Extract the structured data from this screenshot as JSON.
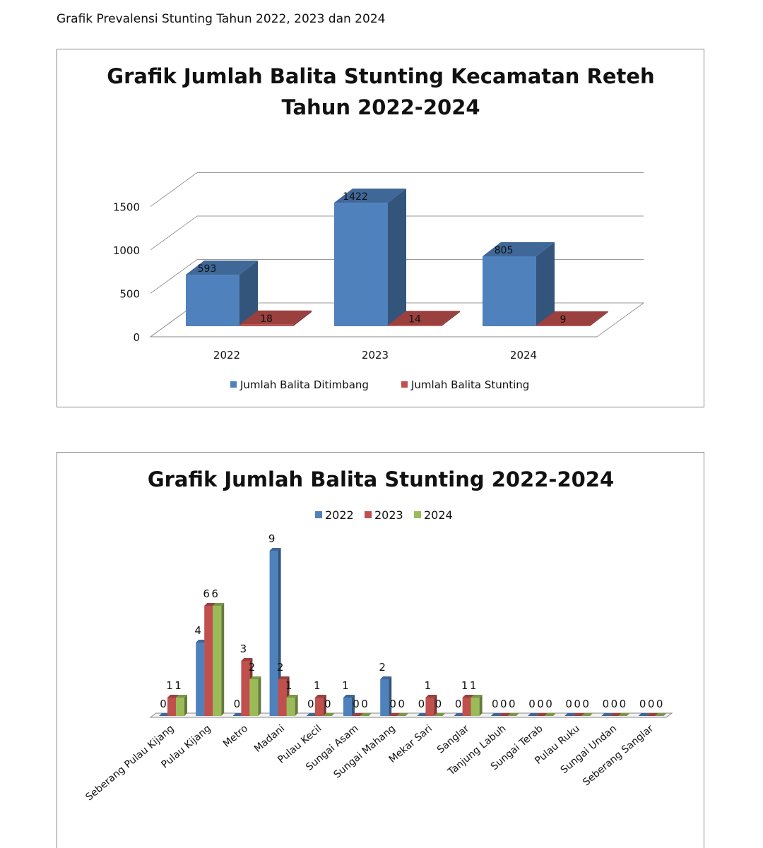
{
  "page_title": "Grafik Prevalensi Stunting Tahun 2022, 2023 dan 2024",
  "chart_data": [
    {
      "type": "bar",
      "title": "Grafik Jumlah Balita Stunting Kecamatan Reteh Tahun 2022-2024",
      "title_lines": [
        "Grafik Jumlah Balita Stunting Kecamatan Reteh",
        "Tahun 2022-2024"
      ],
      "categories": [
        "2022",
        "2023",
        "2024"
      ],
      "series": [
        {
          "name": "Jumlah Balita Ditimbang",
          "values": [
            593,
            1422,
            805
          ],
          "color": "#4f81bd"
        },
        {
          "name": "Jumlah Balita Stunting",
          "values": [
            18,
            14,
            9
          ],
          "color": "#c0504d"
        }
      ],
      "yticks": [
        "0",
        "500",
        "1000",
        "1500"
      ],
      "ylim": [
        0,
        1500
      ],
      "grid": true,
      "legend": "bottom",
      "style": "3d-column"
    },
    {
      "type": "bar",
      "title": "Grafik Jumlah Balita Stunting 2022-2024",
      "categories": [
        "Seberang Pulau Kijang",
        "Pulau Kijang",
        "Metro",
        "Madani",
        "Pulau Kecil",
        "Sungai Asam",
        "Sungai Mahang",
        "Mekar Sari",
        "Sanglar",
        "Tanjung Labuh",
        "Sungai Terab",
        "Pulau Ruku",
        "Sungai Undan",
        "Seberang Sanglar"
      ],
      "series": [
        {
          "name": "2022",
          "values": [
            0,
            4,
            0,
            9,
            0,
            1,
            2,
            0,
            0,
            0,
            0,
            0,
            0,
            0
          ],
          "color": "#4f81bd"
        },
        {
          "name": "2023",
          "values": [
            1,
            6,
            3,
            2,
            1,
            0,
            0,
            1,
            1,
            0,
            0,
            0,
            0,
            0
          ],
          "color": "#c0504d"
        },
        {
          "name": "2024",
          "values": [
            1,
            6,
            2,
            1,
            0,
            0,
            0,
            0,
            1,
            0,
            0,
            0,
            0,
            0
          ],
          "color": "#9bbb59"
        }
      ],
      "ylim": [
        0,
        9
      ],
      "grid": false,
      "legend": "top",
      "style": "3d-column"
    }
  ]
}
